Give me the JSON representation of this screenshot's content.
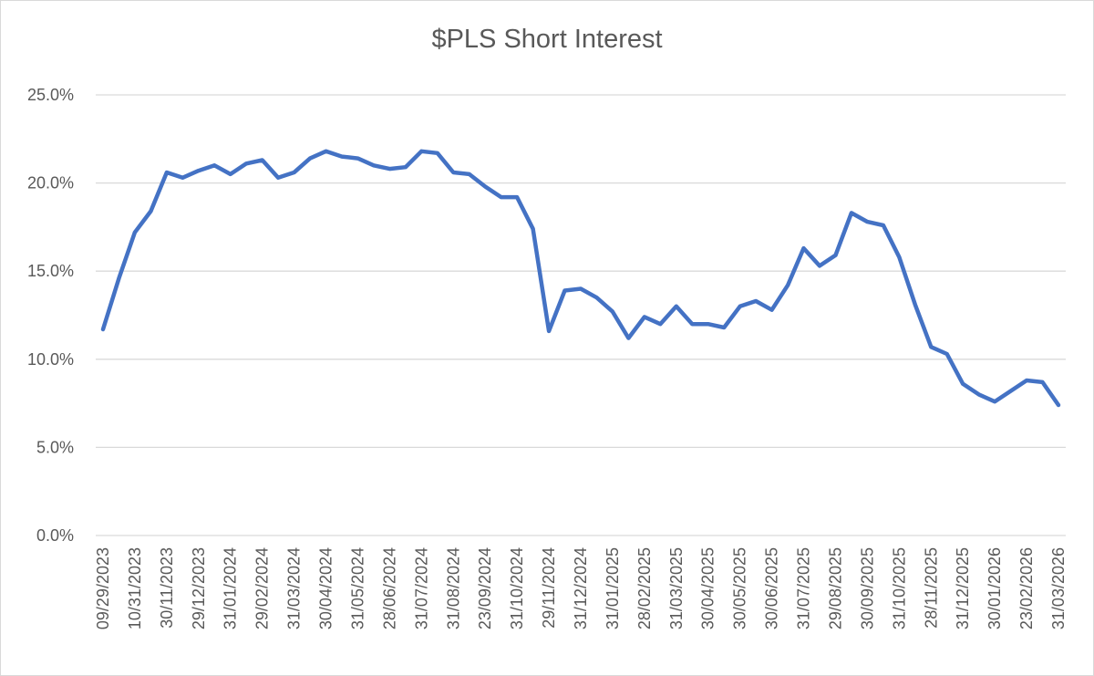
{
  "chart_data": {
    "type": "line",
    "title": "$PLS Short Interest",
    "xlabel": "",
    "ylabel": "",
    "ylim": [
      0,
      25
    ],
    "y_ticks": [
      "0.0%",
      "5.0%",
      "10.0%",
      "15.0%",
      "20.0%",
      "25.0%"
    ],
    "y_tick_values": [
      0,
      5,
      10,
      15,
      20,
      25
    ],
    "grid": true,
    "legend": "none",
    "line_color": "#4472C4",
    "x_tick_labels": [
      "09/29/2023",
      "10/31/2023",
      "30/11/2023",
      "29/12/2023",
      "31/01/2024",
      "29/02/2024",
      "31/03/2024",
      "30/04/2024",
      "31/05/2024",
      "28/06/2024",
      "31/07/2024",
      "31/08/2024",
      "23/09/2024",
      "31/10/2024",
      "29/11/2024",
      "31/12/2024",
      "31/01/2025",
      "28/02/2025",
      "31/03/2025",
      "30/04/2025",
      "30/05/2025",
      "30/06/2025",
      "31/07/2025",
      "29/08/2025",
      "30/09/2025",
      "31/10/2025",
      "28/11/2025",
      "31/12/2025",
      "30/01/2026",
      "23/02/2026",
      "31/03/2026"
    ],
    "series": [
      {
        "values": [
          11.7,
          14.6,
          17.2,
          18.4,
          20.6,
          20.3,
          20.7,
          21.0,
          20.5,
          21.1,
          21.3,
          20.3,
          20.6,
          21.4,
          21.8,
          21.5,
          21.4,
          21.0,
          20.8,
          20.9,
          21.8,
          21.7,
          20.6,
          20.5,
          19.8,
          19.2,
          19.2,
          17.4,
          11.6,
          13.9,
          14.0,
          13.5,
          12.7,
          11.2,
          12.4,
          12.0,
          13.0,
          12.0,
          12.0,
          11.8,
          13.0,
          13.3,
          12.8,
          14.2,
          16.3,
          15.3,
          15.9,
          18.3,
          17.8,
          17.6,
          15.8,
          13.1,
          10.7,
          10.3,
          8.6,
          8.0,
          7.6,
          8.2,
          8.8,
          8.7,
          7.4
        ]
      }
    ]
  }
}
